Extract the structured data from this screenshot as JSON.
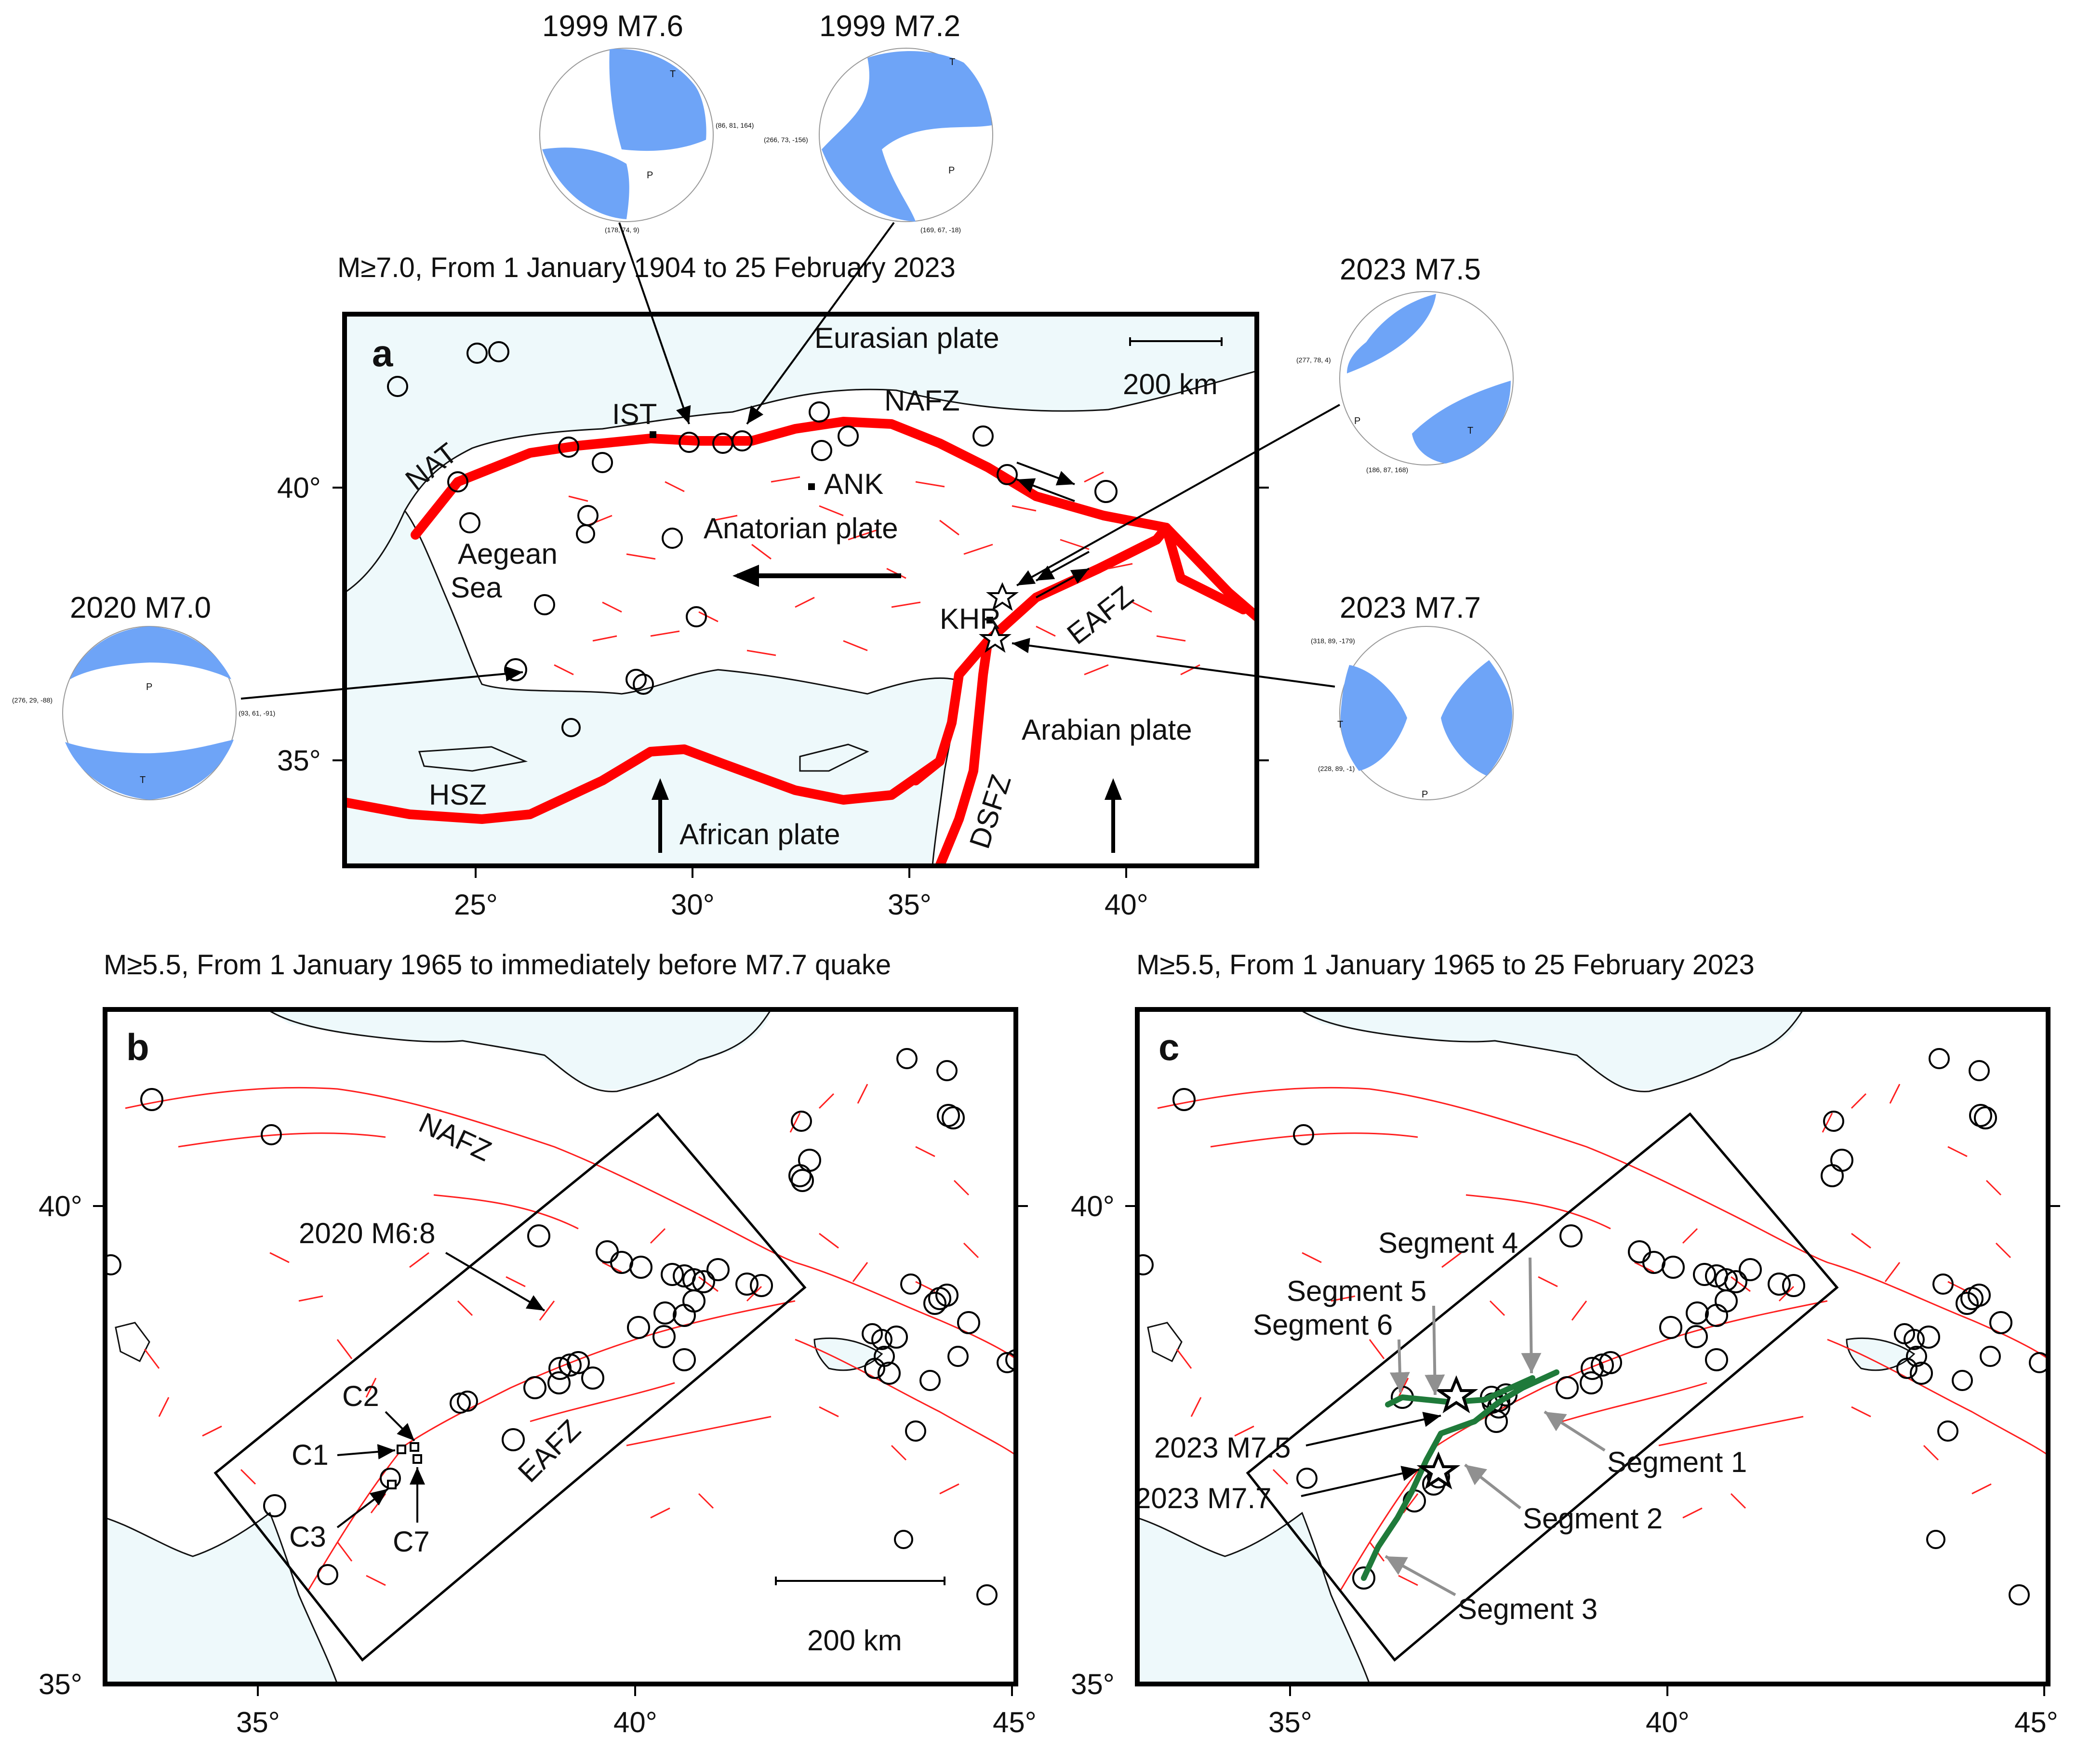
{
  "titles": {
    "a": "M≥7.0, From 1 January 1904 to 25 February 2023",
    "b": "M≥5.5, From 1 January 1965 to immediately before M7.7 quake",
    "c": "M≥5.5, From 1 January 1965 to 25 February 2023"
  },
  "panel_letters": {
    "a": "a",
    "b": "b",
    "c": "c"
  },
  "map_a": {
    "labels": {
      "eurasian": "Eurasian plate",
      "anatolian": "Anatorian plate",
      "arabian": "Arabian plate",
      "african": "African plate",
      "aegean1": "Aegean",
      "aegean2": "Sea",
      "naf": "NAFZ",
      "eaf": "EAFZ",
      "dsf": "DSFZ",
      "hsz": "HSZ",
      "nat": "NAT",
      "ist": "IST",
      "ank": "ANK",
      "khr": "KHR"
    },
    "scale": "200 km",
    "lon_ticks": [
      "25°",
      "30°",
      "35°",
      "40°"
    ],
    "lat_ticks": [
      "40°",
      "35°"
    ]
  },
  "beachballs": {
    "bb1999a": {
      "title": "1999 M7.6",
      "np1": "(86, 81, 164)",
      "np2": "(178, 74, 9)",
      "t": "T",
      "p": "P"
    },
    "bb1999b": {
      "title": "1999 M7.2",
      "np1": "(266, 73, -156)",
      "np2": "(169, 67, -18)",
      "t": "T",
      "p": "P"
    },
    "bb2023a": {
      "title": "2023 M7.5",
      "np1": "(277, 78, 4)",
      "np2": "(186, 87, 168)",
      "t": "T",
      "p": "P"
    },
    "bb2023b": {
      "title": "2023 M7.7",
      "np1": "(318, 89, -179)",
      "np2": "(228, 89, -1)",
      "t": "T",
      "p": "P"
    },
    "bb2020": {
      "title": "2020 M7.0",
      "np1": "(276, 29, -88)",
      "np2": "(93, 61, -91)",
      "t": "T",
      "p": "P"
    }
  },
  "map_b": {
    "naf": "NAFZ",
    "eaf": "EAFZ",
    "eq2020": "2020 M6:8",
    "clusters": [
      "C1",
      "C2",
      "C3",
      "C7"
    ],
    "scale": "200 km",
    "lon_ticks": [
      "35°",
      "40°",
      "45°"
    ],
    "lat_ticks": [
      "40°",
      "35°"
    ]
  },
  "map_c": {
    "segments": [
      "Segment 1",
      "Segment 2",
      "Segment 3",
      "Segment 4",
      "Segment 5",
      "Segment 6"
    ],
    "eq75": "2023 M7.5",
    "eq77": "2023 M7.7",
    "lon_ticks": [
      "35°",
      "40°",
      "45°"
    ],
    "lat_ticks": [
      "40°",
      "35°"
    ]
  },
  "colors": {
    "fault": "#ff0000",
    "land": "#eef9fb",
    "compression": "#6ea4f7",
    "segment": "#1f7a3a"
  }
}
